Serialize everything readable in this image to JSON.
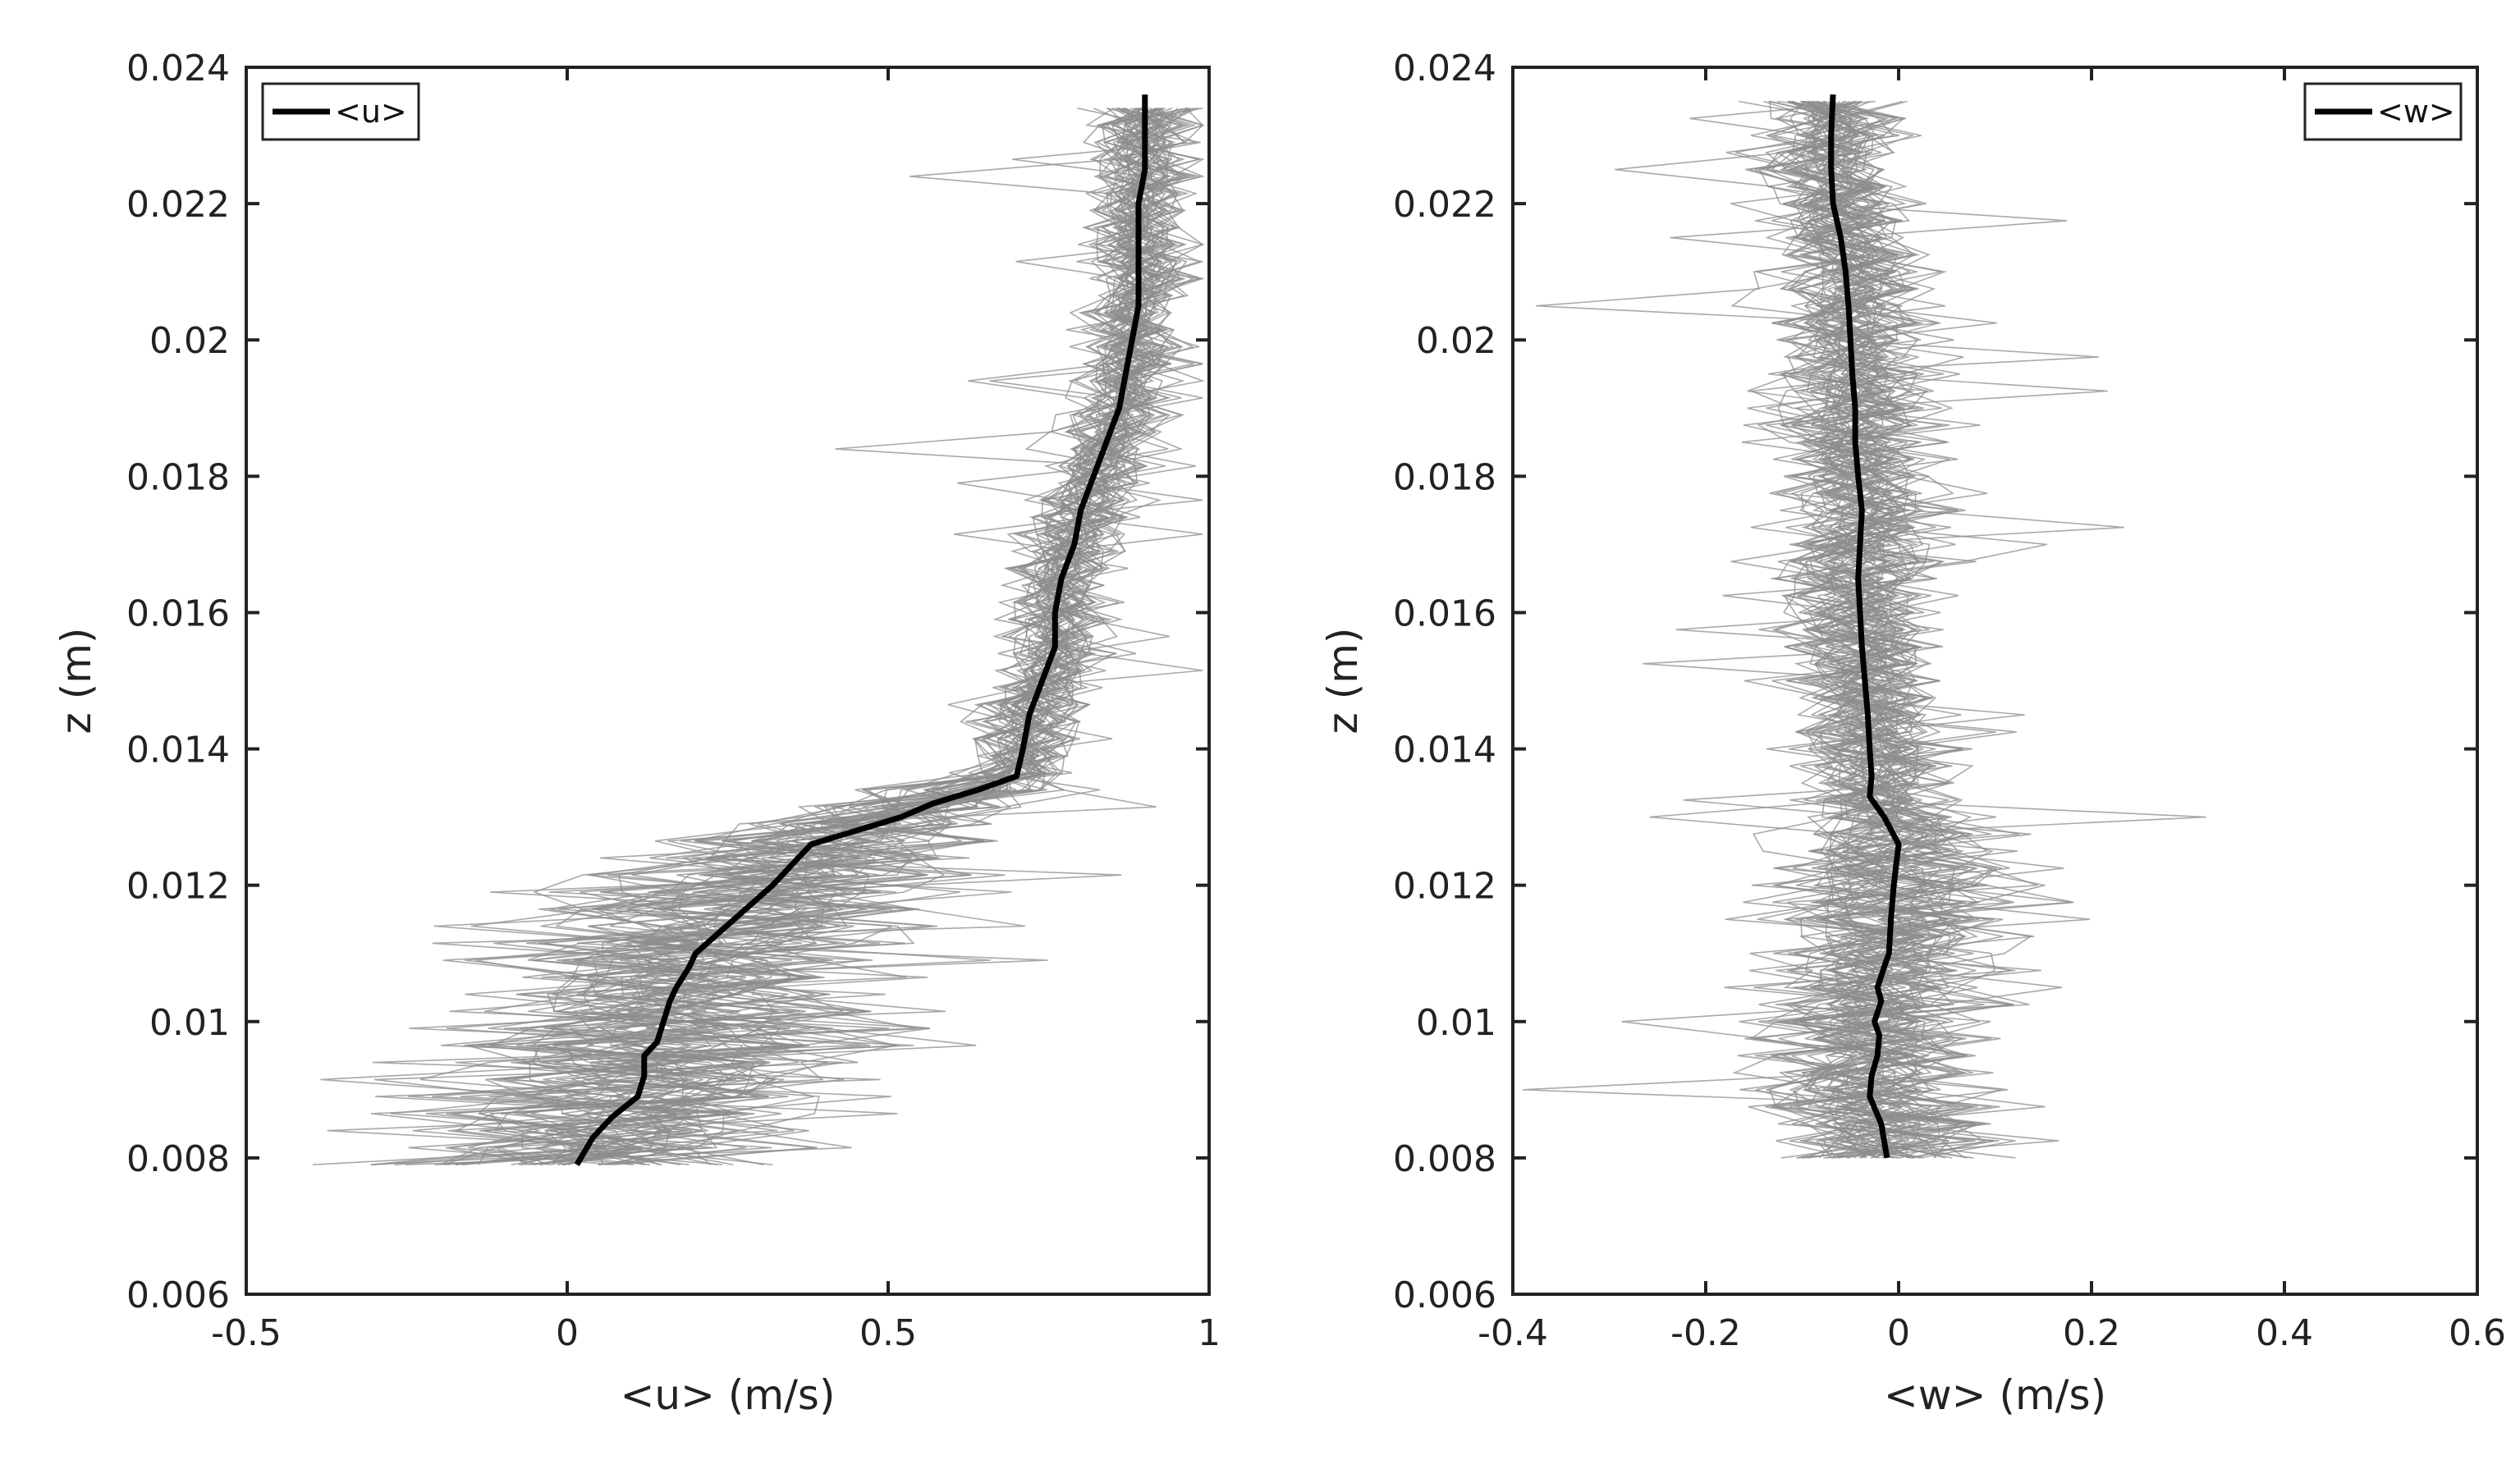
{
  "chart_data": [
    {
      "type": "line",
      "xlabel": "<u> (m/s)",
      "ylabel": "z (m)",
      "xlim": [
        -0.5,
        1
      ],
      "ylim": [
        0.006,
        0.024
      ],
      "xticks": [
        -0.5,
        0,
        0.5,
        1
      ],
      "xtick_labels": [
        "-0.5",
        "0",
        "0.5",
        "1"
      ],
      "yticks": [
        0.006,
        0.008,
        0.01,
        0.012,
        0.014,
        0.016,
        0.018,
        0.02,
        0.022,
        0.024
      ],
      "ytick_labels": [
        "0.006",
        "0.008",
        "0.01",
        "0.012",
        "0.014",
        "0.016",
        "0.018",
        "0.02",
        "0.022",
        "0.024"
      ],
      "grid": false,
      "legend": {
        "placement": "top-left",
        "entries": [
          "<u>"
        ]
      },
      "series": [
        {
          "name": "<u>",
          "color": "#000000",
          "z": [
            0.0079,
            0.0083,
            0.0086,
            0.0089,
            0.0092,
            0.0095,
            0.0097,
            0.01,
            0.0103,
            0.0105,
            0.0108,
            0.011,
            0.0115,
            0.012,
            0.0124,
            0.0126,
            0.0128,
            0.013,
            0.0132,
            0.0134,
            0.0136,
            0.014,
            0.0145,
            0.015,
            0.0155,
            0.016,
            0.0165,
            0.017,
            0.0175,
            0.018,
            0.0185,
            0.019,
            0.0195,
            0.02,
            0.0205,
            0.021,
            0.0215,
            0.022,
            0.0225,
            0.023,
            0.0236
          ],
          "u": [
            0.015,
            0.04,
            0.07,
            0.11,
            0.12,
            0.12,
            0.14,
            0.15,
            0.16,
            0.17,
            0.19,
            0.2,
            0.26,
            0.32,
            0.36,
            0.38,
            0.45,
            0.52,
            0.57,
            0.64,
            0.7,
            0.71,
            0.72,
            0.74,
            0.76,
            0.76,
            0.77,
            0.79,
            0.8,
            0.82,
            0.84,
            0.86,
            0.87,
            0.88,
            0.89,
            0.89,
            0.89,
            0.89,
            0.9,
            0.9,
            0.9
          ]
        }
      ],
      "scatter_band_color": "#8c8c8c"
    },
    {
      "type": "line",
      "xlabel": "<w> (m/s)",
      "ylabel": "z (m)",
      "xlim": [
        -0.4,
        0.6
      ],
      "ylim": [
        0.006,
        0.024
      ],
      "xticks": [
        -0.4,
        -0.2,
        0,
        0.2,
        0.4,
        0.6
      ],
      "xtick_labels": [
        "-0.4",
        "-0.2",
        "0",
        "0.2",
        "0.4",
        "0.6"
      ],
      "yticks": [
        0.006,
        0.008,
        0.01,
        0.012,
        0.014,
        0.016,
        0.018,
        0.02,
        0.022,
        0.024
      ],
      "ytick_labels": [
        "0.006",
        "0.008",
        "0.01",
        "0.012",
        "0.014",
        "0.016",
        "0.018",
        "0.02",
        "0.022",
        "0.024"
      ],
      "grid": false,
      "legend": {
        "placement": "top-right",
        "entries": [
          "<w>"
        ]
      },
      "series": [
        {
          "name": "<w>",
          "color": "#000000",
          "z": [
            0.008,
            0.0085,
            0.0089,
            0.0092,
            0.0095,
            0.0098,
            0.01,
            0.0103,
            0.0105,
            0.0108,
            0.011,
            0.0115,
            0.012,
            0.0126,
            0.013,
            0.0133,
            0.0136,
            0.014,
            0.0145,
            0.015,
            0.0155,
            0.016,
            0.0165,
            0.017,
            0.0175,
            0.018,
            0.0185,
            0.019,
            0.0195,
            0.02,
            0.0205,
            0.021,
            0.0215,
            0.022,
            0.0225,
            0.023,
            0.0236
          ],
          "w": [
            -0.012,
            -0.018,
            -0.03,
            -0.028,
            -0.022,
            -0.02,
            -0.025,
            -0.018,
            -0.022,
            -0.015,
            -0.01,
            -0.008,
            -0.005,
            0.0,
            -0.015,
            -0.03,
            -0.028,
            -0.03,
            -0.032,
            -0.035,
            -0.038,
            -0.04,
            -0.042,
            -0.04,
            -0.038,
            -0.042,
            -0.045,
            -0.045,
            -0.048,
            -0.05,
            -0.052,
            -0.055,
            -0.06,
            -0.068,
            -0.07,
            -0.07,
            -0.068
          ]
        }
      ],
      "scatter_band_color": "#8c8c8c"
    }
  ]
}
